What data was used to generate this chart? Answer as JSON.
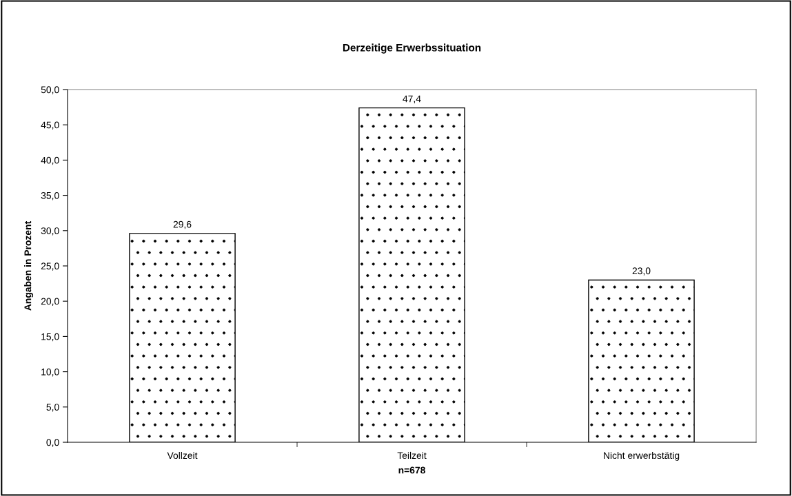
{
  "chart_data": {
    "type": "bar",
    "title": "Derzeitige Erwerbssituation",
    "xlabel": "n=678",
    "ylabel": "Angaben in Prozent",
    "categories": [
      "Vollzeit",
      "Teilzeit",
      "Nicht erwerbstätig"
    ],
    "values": [
      29.6,
      47.4,
      23.0
    ],
    "value_labels": [
      "29,6",
      "47,4",
      "23,0"
    ],
    "ylim": [
      0,
      50
    ],
    "yticks": [
      {
        "value": 0,
        "label": "0,0"
      },
      {
        "value": 5,
        "label": "5,0"
      },
      {
        "value": 10,
        "label": "10,0"
      },
      {
        "value": 15,
        "label": "15,0"
      },
      {
        "value": 20,
        "label": "20,0"
      },
      {
        "value": 25,
        "label": "25,0"
      },
      {
        "value": 30,
        "label": "30,0"
      },
      {
        "value": 35,
        "label": "35,0"
      },
      {
        "value": 40,
        "label": "40,0"
      },
      {
        "value": 45,
        "label": "45,0"
      },
      {
        "value": 50,
        "label": "50,0"
      }
    ],
    "grid": false,
    "legend": false
  }
}
